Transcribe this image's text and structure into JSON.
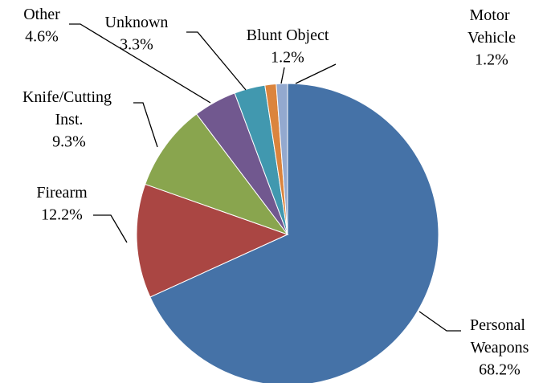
{
  "chart_data": {
    "type": "pie",
    "categories": [
      "Personal Weapons",
      "Firearm",
      "Knife/Cutting Inst.",
      "Other",
      "Unknown",
      "Blunt Object",
      "Motor Vehicle"
    ],
    "values": [
      68.2,
      12.2,
      9.3,
      4.6,
      3.3,
      1.2,
      1.2
    ],
    "value_labels": [
      "68.2%",
      "12.2%",
      "9.3%",
      "4.6%",
      "3.3%",
      "1.2%",
      "1.2%"
    ],
    "colors": [
      "#4572a7",
      "#aa4643",
      "#89a54e",
      "#71588f",
      "#4198af",
      "#db843d",
      "#93a9cf"
    ]
  }
}
